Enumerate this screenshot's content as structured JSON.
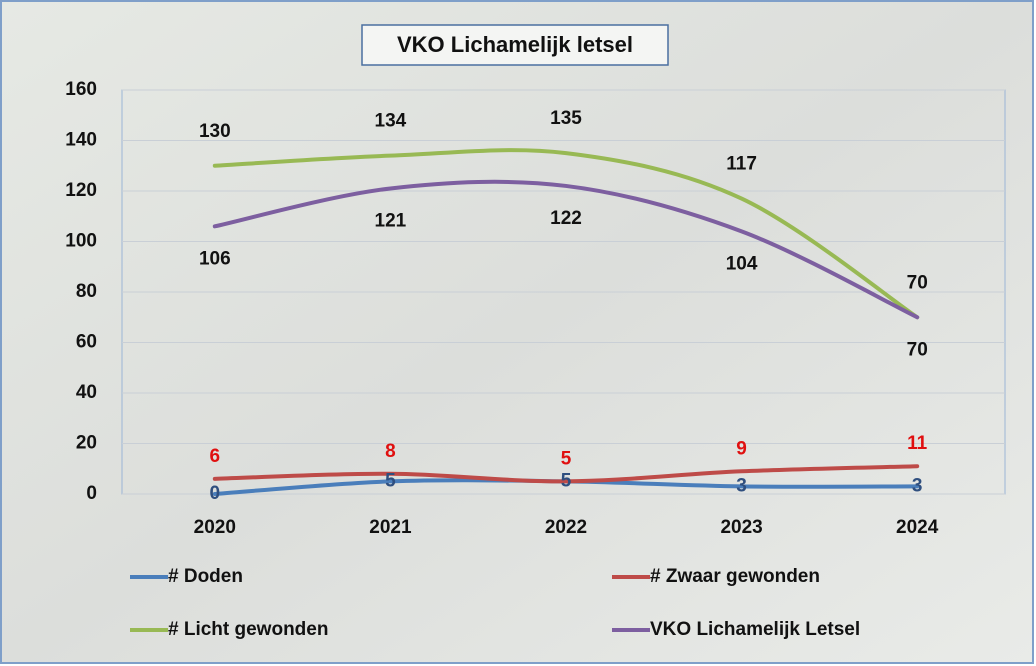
{
  "chart_data": {
    "type": "line",
    "title": "VKO Lichamelijk letsel",
    "categories": [
      "2020",
      "2021",
      "2022",
      "2023",
      "2024"
    ],
    "series": [
      {
        "name": "# Doden",
        "color": "#4a7ebb",
        "values": [
          0,
          5,
          5,
          3,
          3
        ]
      },
      {
        "name": "# Zwaar gewonden",
        "color": "#be4b48",
        "values": [
          6,
          8,
          5,
          9,
          11
        ]
      },
      {
        "name": "# Licht gewonden",
        "color": "#98b954",
        "values": [
          130,
          134,
          135,
          117,
          70
        ]
      },
      {
        "name": "VKO Lichamelijk Letsel",
        "color": "#7d5fa0",
        "values": [
          106,
          121,
          122,
          104,
          70
        ]
      }
    ],
    "ylim": [
      0,
      160
    ],
    "yticks": [
      0,
      20,
      40,
      60,
      80,
      100,
      120,
      140,
      160
    ],
    "grid": true,
    "smooth": true
  }
}
